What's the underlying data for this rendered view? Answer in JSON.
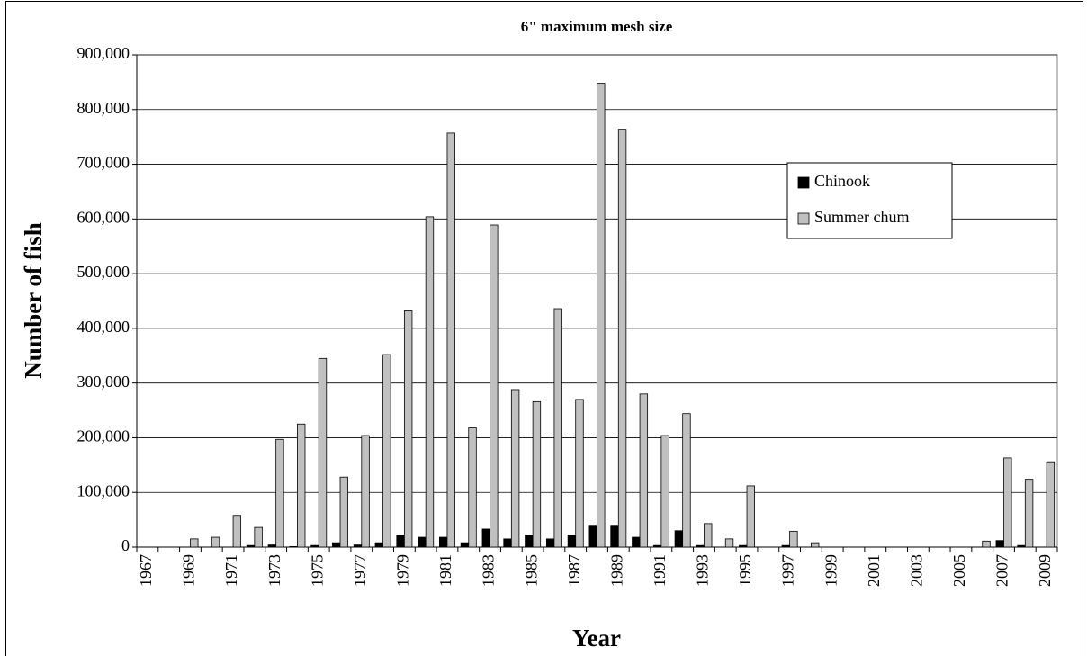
{
  "chart_data": {
    "type": "bar",
    "title": "6\" maximum mesh size",
    "x_label": "Year",
    "y_label": "Number of fish",
    "categories": [
      "1967",
      null,
      "1969",
      null,
      "1971",
      null,
      "1973",
      null,
      "1975",
      null,
      "1977",
      null,
      "1979",
      null,
      "1981",
      null,
      "1983",
      null,
      "1985",
      null,
      "1987",
      null,
      "1989",
      null,
      "1991",
      null,
      "1993",
      null,
      "1995",
      null,
      "1997",
      null,
      "1999",
      null,
      "2001",
      null,
      "2003",
      null,
      "2005",
      null,
      "2007",
      null,
      "2009"
    ],
    "series": [
      {
        "name": "Chinook",
        "color": "#000000",
        "values": [
          0,
          0,
          0,
          0,
          0,
          3000,
          4000,
          1000,
          3000,
          8000,
          4000,
          8000,
          22000,
          18000,
          18000,
          8000,
          33000,
          15000,
          22000,
          15000,
          22000,
          40000,
          40000,
          18000,
          3000,
          30000,
          3000,
          0,
          3000,
          0,
          3000,
          0,
          0,
          0,
          0,
          0,
          0,
          0,
          0,
          0,
          12000,
          3000,
          0
        ]
      },
      {
        "name": "Summer chum",
        "color": "#c0c0c0",
        "values": [
          0,
          0,
          15000,
          18000,
          58000,
          36000,
          197000,
          225000,
          345000,
          128000,
          204000,
          352000,
          432000,
          604000,
          757000,
          218000,
          589000,
          288000,
          266000,
          436000,
          270000,
          848000,
          764000,
          280000,
          204000,
          244000,
          43000,
          15000,
          112000,
          0,
          29000,
          8000,
          0,
          0,
          0,
          0,
          0,
          0,
          0,
          11000,
          163000,
          124000,
          156000
        ]
      }
    ],
    "ylim": [
      0,
      900000
    ],
    "yticks": [
      0,
      {
        "value": 100000,
        "label": "100,000"
      },
      {
        "value": 200000,
        "label": "200,000"
      },
      {
        "value": 300000,
        "label": "300,000"
      },
      {
        "value": 400000,
        "label": "400,000"
      },
      {
        "value": 500000,
        "label": "500,000"
      },
      {
        "value": 600000,
        "label": "600,000"
      },
      {
        "value": 700000,
        "label": "700,000"
      },
      {
        "value": 800000,
        "label": "800,000"
      },
      {
        "value": 900000,
        "label": "900,000"
      }
    ],
    "grid": true,
    "legend": "right"
  }
}
